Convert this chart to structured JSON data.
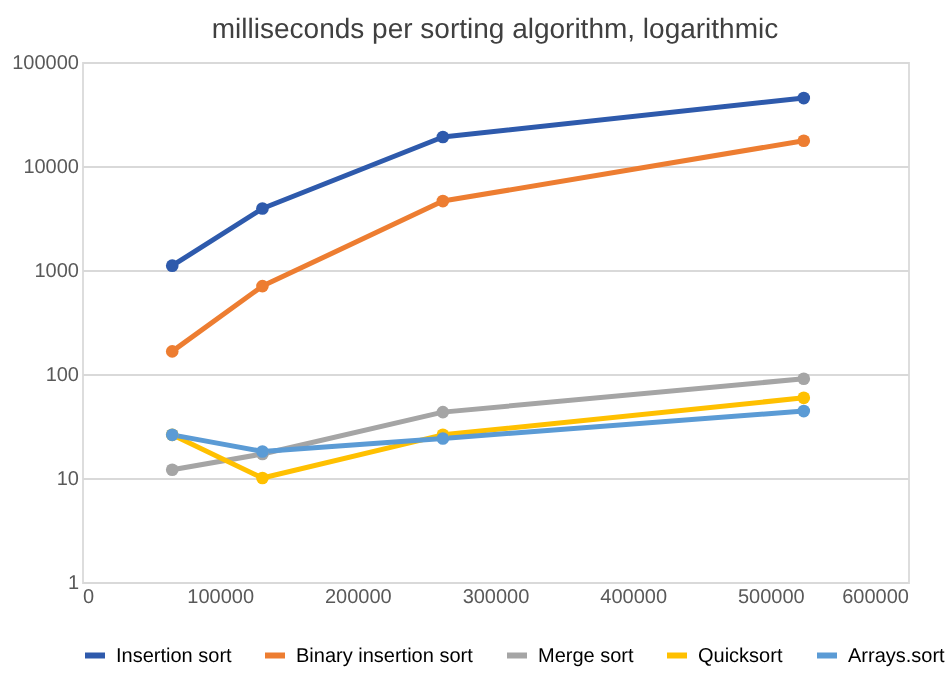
{
  "chart_data": {
    "type": "line",
    "title": "milliseconds per sorting algorithm, logarithmic",
    "x": [
      65536,
      131072,
      262144,
      524288
    ],
    "series": [
      {
        "name": "Insertion sort",
        "color": "#2e5aac",
        "values": [
          1100,
          3900,
          19000,
          45000
        ]
      },
      {
        "name": "Binary insertion sort",
        "color": "#ed7d31",
        "values": [
          165,
          700,
          4600,
          17500
        ]
      },
      {
        "name": "Merge sort",
        "color": "#a5a5a5",
        "values": [
          12,
          17,
          43,
          90
        ]
      },
      {
        "name": "Quicksort",
        "color": "#ffc000",
        "values": [
          26,
          10,
          26,
          59
        ]
      },
      {
        "name": "Arrays.sort",
        "color": "#5b9bd5",
        "values": [
          26,
          18,
          24,
          44
        ]
      }
    ],
    "xlim": [
      0,
      600000
    ],
    "xticks": [
      0,
      100000,
      200000,
      300000,
      400000,
      500000,
      600000
    ],
    "ylim": [
      1,
      100000
    ],
    "yticks": [
      1,
      10,
      100,
      1000,
      10000,
      100000
    ],
    "log": "y",
    "grid": "y",
    "legend": "bottom",
    "marker": "circle",
    "line_style": "solid"
  }
}
